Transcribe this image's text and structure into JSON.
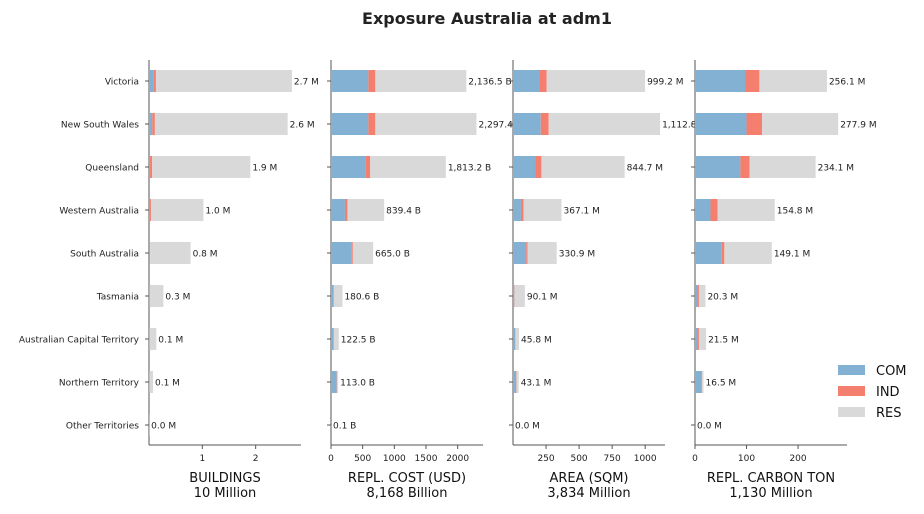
{
  "chart_data": {
    "type": "bar",
    "orientation": "horizontal",
    "stacked": true,
    "title": "Exposure Australia at adm1",
    "categories": [
      "Victoria",
      "New South Wales",
      "Queensland",
      "Western Australia",
      "South Australia",
      "Tasmania",
      "Australian Capital Territory",
      "Northern Territory",
      "Other Territories"
    ],
    "legend": {
      "placement": "right",
      "entries": [
        {
          "name": "COM",
          "color": "#82b1d3"
        },
        {
          "name": "IND",
          "color": "#f47f6e"
        },
        {
          "name": "RES",
          "color": "#d9d9d9"
        }
      ]
    },
    "panels": [
      {
        "xlabel": "BUILDINGS",
        "xlabel2": "10 Million",
        "xlim": [
          0,
          2.85
        ],
        "ticks": [
          1,
          2
        ],
        "tick_labels": [
          "1",
          "2"
        ],
        "series": [
          {
            "name": "COM",
            "values": [
              0.08,
              0.06,
              0.02,
              0.02,
              0.01,
              0.005,
              0.004,
              0.003,
              0
            ]
          },
          {
            "name": "IND",
            "values": [
              0.05,
              0.05,
              0.04,
              0.02,
              0.01,
              0.005,
              0.003,
              0.002,
              0
            ]
          },
          {
            "name": "RES",
            "values": [
              2.55,
              2.49,
              1.84,
              0.98,
              0.76,
              0.26,
              0.13,
              0.07,
              0.003
            ]
          }
        ],
        "labels": [
          "2.7 M",
          "2.6 M",
          "1.9 M",
          "1.0 M",
          "0.8 M",
          "0.3 M",
          "0.1 M",
          "0.1 M",
          "0.0 M"
        ]
      },
      {
        "xlabel": "REPL. COST (USD)",
        "xlabel2": "8,168 Billion",
        "xlim": [
          0,
          2400
        ],
        "ticks": [
          0,
          500,
          1000,
          1500,
          2000
        ],
        "tick_labels": [
          "0",
          "500",
          "1000",
          "1500",
          "2000"
        ],
        "series": [
          {
            "name": "COM",
            "values": [
              590,
              590,
              540,
              220,
              330,
              40,
              40,
              90,
              0
            ]
          },
          {
            "name": "IND",
            "values": [
              110,
              110,
              80,
              40,
              15,
              5,
              5,
              5,
              0
            ]
          },
          {
            "name": "RES",
            "values": [
              1436.5,
              1597.4,
              1193.2,
              579.4,
              320.0,
              135.6,
              77.5,
              18.0,
              0.1
            ]
          }
        ],
        "labels": [
          "2,136.5 B",
          "2,297.4 B",
          "1,813.2 B",
          "839.4 B",
          "665.0 B",
          "180.6 B",
          "122.5 B",
          "113.0 B",
          "0.1 B"
        ]
      },
      {
        "xlabel": "AREA (SQM)",
        "xlabel2": "3,834 Million",
        "xlim": [
          0,
          1150
        ],
        "ticks": [
          250,
          500,
          750,
          1000
        ],
        "tick_labels": [
          "250",
          "500",
          "750",
          "1000"
        ],
        "series": [
          {
            "name": "COM",
            "values": [
              200,
              210,
              170,
              60,
              100,
              10,
              15,
              25,
              0
            ]
          },
          {
            "name": "IND",
            "values": [
              55,
              60,
              45,
              20,
              10,
              3,
              3,
              3,
              0
            ]
          },
          {
            "name": "RES",
            "values": [
              744.2,
              842.8,
              629.7,
              287.1,
              220.9,
              77.1,
              27.8,
              15.1,
              0
            ]
          }
        ],
        "labels": [
          "999.2 M",
          "1,112.8 M",
          "844.7 M",
          "367.1 M",
          "330.9 M",
          "90.1 M",
          "45.8 M",
          "43.1 M",
          "0.0 M"
        ]
      },
      {
        "xlabel": "REPL. CARBON TON",
        "xlabel2": "1,130 Million",
        "xlim": [
          0,
          295
        ],
        "ticks": [
          0,
          100,
          200
        ],
        "tick_labels": [
          "0",
          "100",
          "200"
        ],
        "series": [
          {
            "name": "COM",
            "values": [
              98,
              100,
              88,
              30,
              52,
              6,
              6,
              13,
              0
            ]
          },
          {
            "name": "IND",
            "values": [
              27,
              30,
              18,
              14,
              5,
              2,
              2,
              1,
              0
            ]
          },
          {
            "name": "RES",
            "values": [
              131.1,
              147.9,
              128.1,
              110.8,
              92.1,
              12.3,
              13.5,
              2.5,
              0
            ]
          }
        ],
        "labels": [
          "256.1 M",
          "277.9 M",
          "234.1 M",
          "154.8 M",
          "149.1 M",
          "20.3 M",
          "21.5 M",
          "16.5 M",
          "0.0 M"
        ]
      }
    ]
  }
}
